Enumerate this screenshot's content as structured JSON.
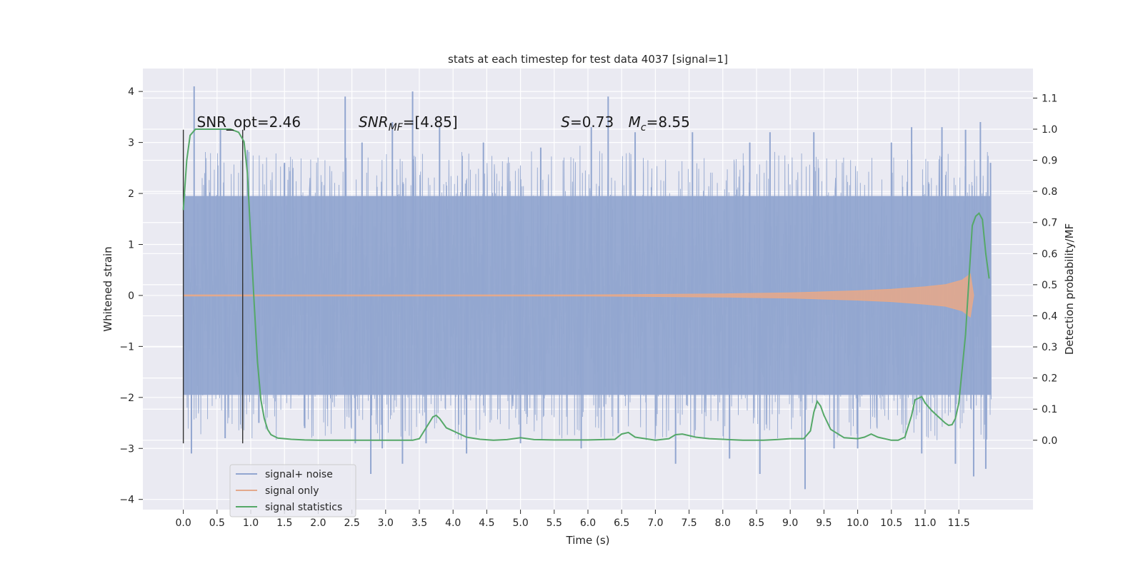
{
  "chart_data": {
    "type": "line",
    "title": "stats at each timestep for test data 4037 [signal=1]",
    "xlabel": "Time (s)",
    "ylabel": "Whitened strain",
    "y2label": "Detection probability/MF",
    "xlim": [
      -0.6,
      12.6
    ],
    "ylim": [
      -4.2,
      4.45
    ],
    "y2lim": [
      -0.223,
      1.195
    ],
    "grid": true,
    "x_ticks": [
      0.0,
      0.5,
      1.0,
      1.5,
      2.0,
      2.5,
      3.0,
      3.5,
      4.0,
      4.5,
      5.0,
      5.5,
      6.0,
      6.5,
      7.0,
      7.5,
      8.0,
      8.5,
      9.0,
      9.5,
      10.0,
      10.5,
      11.0,
      11.5
    ],
    "x_tick_labels": [
      "0.0",
      "0.5",
      "1.0",
      "1.5",
      "2.0",
      "2.5",
      "3.0",
      "3.5",
      "4.0",
      "4.5",
      "5.0",
      "5.5",
      "6.0",
      "6.5",
      "7.0",
      "7.5",
      "8.0",
      "8.5",
      "9.0",
      "9.5",
      "10.0",
      "10.5",
      "11.0",
      "11.5"
    ],
    "y_ticks": [
      -4,
      -3,
      -2,
      -1,
      0,
      1,
      2,
      3,
      4
    ],
    "y_tick_labels": [
      "−4",
      "−3",
      "−2",
      "−1",
      "0",
      "1",
      "2",
      "3",
      "4"
    ],
    "y2_ticks": [
      0.0,
      0.1,
      0.2,
      0.3,
      0.4,
      0.5,
      0.6,
      0.7,
      0.8,
      0.9,
      1.0,
      1.1
    ],
    "y2_tick_labels": [
      "0.0",
      "0.1",
      "0.2",
      "0.3",
      "0.4",
      "0.5",
      "0.6",
      "0.7",
      "0.8",
      "0.9",
      "1.0",
      "1.1"
    ],
    "legend": {
      "placement": "lower-left",
      "entries": [
        {
          "label": "signal+ noise",
          "color": "#92a6d0"
        },
        {
          "label": "signal only",
          "color": "#e3a98c"
        },
        {
          "label": "signal statistics",
          "color": "#55a868"
        }
      ]
    },
    "annotations": [
      {
        "text": "SNR_opt=2.46",
        "x": 0.2,
        "y": 3.3
      },
      {
        "text": "SNR_MF=[4.85]",
        "x": 2.6,
        "y": 3.3
      },
      {
        "text": "S=0.73",
        "x": 5.6,
        "y": 3.3
      },
      {
        "text": "M_c=8.55",
        "x": 6.6,
        "y": 3.3
      }
    ],
    "vertical_lines": [
      {
        "x": 0.0,
        "y_from": -2.9,
        "y_to": 3.25
      },
      {
        "x": 0.88,
        "y_from": -2.9,
        "y_to": 3.25
      }
    ],
    "series": [
      {
        "name": "signal+ noise",
        "color": "#92a6d0",
        "x_range": [
          0.0,
          11.98
        ],
        "band": [
          -1.95,
          1.95
        ],
        "spikes": [
          {
            "x": 0.16,
            "y": 4.1
          },
          {
            "x": 0.12,
            "y": -3.1
          },
          {
            "x": 0.55,
            "y": 3.25
          },
          {
            "x": 0.62,
            "y": -2.8
          },
          {
            "x": 0.95,
            "y": 2.85
          },
          {
            "x": 1.12,
            "y": -2.5
          },
          {
            "x": 1.5,
            "y": 2.6
          },
          {
            "x": 1.8,
            "y": -2.6
          },
          {
            "x": 2.4,
            "y": 3.9
          },
          {
            "x": 2.55,
            "y": -2.9
          },
          {
            "x": 2.65,
            "y": 3.0
          },
          {
            "x": 2.78,
            "y": -3.5
          },
          {
            "x": 2.95,
            "y": -3.0
          },
          {
            "x": 3.1,
            "y": 3.4
          },
          {
            "x": 3.25,
            "y": -3.3
          },
          {
            "x": 3.4,
            "y": 4.0
          },
          {
            "x": 3.6,
            "y": -2.9
          },
          {
            "x": 3.8,
            "y": 3.3
          },
          {
            "x": 4.2,
            "y": -3.1
          },
          {
            "x": 4.45,
            "y": 3.0
          },
          {
            "x": 5.0,
            "y": -2.9
          },
          {
            "x": 5.3,
            "y": 2.9
          },
          {
            "x": 5.9,
            "y": -3.0
          },
          {
            "x": 6.05,
            "y": 3.3
          },
          {
            "x": 6.3,
            "y": 3.9
          },
          {
            "x": 6.45,
            "y": -2.7
          },
          {
            "x": 6.7,
            "y": 3.2
          },
          {
            "x": 7.3,
            "y": -3.3
          },
          {
            "x": 7.55,
            "y": 3.2
          },
          {
            "x": 8.1,
            "y": -3.2
          },
          {
            "x": 8.4,
            "y": 3.0
          },
          {
            "x": 8.55,
            "y": -3.5
          },
          {
            "x": 8.7,
            "y": 3.2
          },
          {
            "x": 9.22,
            "y": -3.8
          },
          {
            "x": 9.35,
            "y": 3.2
          },
          {
            "x": 9.65,
            "y": -3.0
          },
          {
            "x": 10.0,
            "y": -3.0
          },
          {
            "x": 10.5,
            "y": 3.0
          },
          {
            "x": 10.8,
            "y": 3.3
          },
          {
            "x": 10.95,
            "y": -3.1
          },
          {
            "x": 11.25,
            "y": 3.3
          },
          {
            "x": 11.45,
            "y": -3.3
          },
          {
            "x": 11.6,
            "y": 3.25
          },
          {
            "x": 11.72,
            "y": -3.55
          },
          {
            "x": 11.82,
            "y": 3.4
          },
          {
            "x": 11.9,
            "y": -3.4
          },
          {
            "x": 11.97,
            "y": 2.6
          }
        ]
      },
      {
        "name": "signal only",
        "color": "#e3a98c",
        "envelope": [
          {
            "x": 0.0,
            "y": 0.01
          },
          {
            "x": 6.0,
            "y": 0.01
          },
          {
            "x": 8.0,
            "y": 0.03
          },
          {
            "x": 9.0,
            "y": 0.05
          },
          {
            "x": 10.0,
            "y": 0.09
          },
          {
            "x": 10.5,
            "y": 0.12
          },
          {
            "x": 11.0,
            "y": 0.17
          },
          {
            "x": 11.3,
            "y": 0.21
          },
          {
            "x": 11.55,
            "y": 0.3
          },
          {
            "x": 11.67,
            "y": 0.42
          },
          {
            "x": 11.72,
            "y": 0.0
          }
        ]
      },
      {
        "name": "signal statistics",
        "color": "#55a868",
        "axis": "right",
        "x": [
          0.0,
          0.05,
          0.1,
          0.18,
          0.3,
          0.5,
          0.7,
          0.82,
          0.9,
          0.95,
          1.0,
          1.05,
          1.1,
          1.15,
          1.2,
          1.25,
          1.3,
          1.4,
          1.6,
          1.8,
          2.0,
          2.5,
          3.0,
          3.4,
          3.5,
          3.6,
          3.7,
          3.75,
          3.8,
          3.9,
          4.0,
          4.2,
          4.4,
          4.6,
          4.8,
          5.0,
          5.2,
          5.5,
          6.0,
          6.4,
          6.5,
          6.6,
          6.7,
          7.0,
          7.2,
          7.3,
          7.4,
          7.6,
          7.8,
          8.0,
          8.3,
          8.6,
          8.8,
          9.0,
          9.2,
          9.3,
          9.35,
          9.4,
          9.45,
          9.5,
          9.6,
          9.8,
          10.0,
          10.1,
          10.2,
          10.3,
          10.5,
          10.6,
          10.7,
          10.8,
          10.85,
          10.95,
          11.0,
          11.1,
          11.2,
          11.3,
          11.35,
          11.4,
          11.45,
          11.5,
          11.6,
          11.7,
          11.75,
          11.8,
          11.85,
          11.9,
          11.95
        ],
        "y": [
          0.74,
          0.9,
          0.98,
          1.0,
          1.0,
          1.0,
          1.0,
          0.99,
          0.96,
          0.86,
          0.65,
          0.44,
          0.25,
          0.13,
          0.07,
          0.035,
          0.018,
          0.007,
          0.003,
          0.001,
          0.0,
          0.0,
          0.0,
          0.0,
          0.005,
          0.04,
          0.075,
          0.08,
          0.07,
          0.04,
          0.03,
          0.01,
          0.003,
          0.0,
          0.002,
          0.008,
          0.002,
          0.001,
          0.001,
          0.003,
          0.02,
          0.025,
          0.01,
          0.0,
          0.005,
          0.018,
          0.02,
          0.01,
          0.005,
          0.003,
          0.0,
          0.0,
          0.002,
          0.005,
          0.005,
          0.03,
          0.09,
          0.125,
          0.11,
          0.08,
          0.035,
          0.008,
          0.005,
          0.01,
          0.02,
          0.01,
          0.0,
          0.0,
          0.01,
          0.08,
          0.13,
          0.14,
          0.12,
          0.095,
          0.075,
          0.055,
          0.048,
          0.05,
          0.07,
          0.12,
          0.34,
          0.69,
          0.72,
          0.73,
          0.71,
          0.6,
          0.52
        ]
      }
    ]
  }
}
